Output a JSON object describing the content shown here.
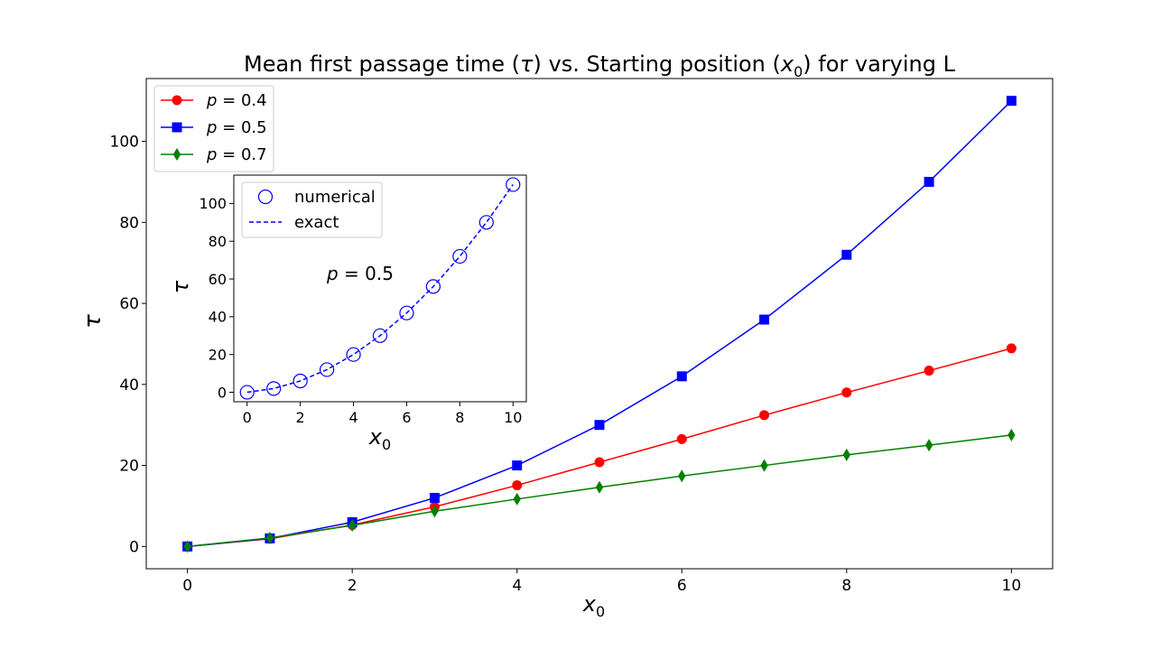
{
  "chart_data": [
    {
      "type": "line",
      "title_main": "Mean first passage time (",
      "title_tau": "τ",
      "title_mid": ") vs. Starting position (",
      "title_x": "x",
      "title_sub": "0",
      "title_end": ") for varying L",
      "xlabel": "x",
      "xlabel_sub": "0",
      "ylabel": "τ",
      "xlim": [
        -0.5,
        10.5
      ],
      "ylim": [
        -5.5,
        115.5
      ],
      "xticks": [
        0,
        2,
        4,
        6,
        8,
        10
      ],
      "yticks": [
        0,
        20,
        40,
        60,
        80,
        100
      ],
      "grid": false,
      "legend_position": "upper-left",
      "x": [
        0,
        1,
        2,
        3,
        4,
        5,
        6,
        7,
        8,
        9,
        10
      ],
      "series": [
        {
          "name_p": "p",
          "name_eq": " = 0.4",
          "color": "#ff0000",
          "marker": "circle",
          "values": [
            0,
            1.9,
            5.3,
            9.8,
            15.1,
            20.8,
            26.5,
            32.4,
            38.0,
            43.4,
            48.9
          ]
        },
        {
          "name_p": "p",
          "name_eq": " = 0.5",
          "color": "#0000ff",
          "marker": "square",
          "values": [
            0,
            2,
            6,
            12,
            20,
            30,
            42,
            56,
            72,
            90,
            110
          ]
        },
        {
          "name_p": "p",
          "name_eq": " = 0.7",
          "color": "#008000",
          "marker": "diamond",
          "values": [
            0,
            2.1,
            5.2,
            8.7,
            11.7,
            14.6,
            17.4,
            20.0,
            22.6,
            25.0,
            27.5
          ]
        }
      ]
    },
    {
      "type": "line",
      "xlabel": "x",
      "xlabel_sub": "0",
      "ylabel": "τ",
      "annotation_p": "p",
      "annotation_eq": " = 0.5",
      "xlim": [
        -0.5,
        10.5
      ],
      "ylim": [
        -5,
        115
      ],
      "xticks": [
        0,
        2,
        4,
        6,
        8,
        10
      ],
      "yticks": [
        0,
        20,
        40,
        60,
        80,
        100
      ],
      "grid": false,
      "legend_position": "upper-left",
      "x": [
        0,
        1,
        2,
        3,
        4,
        5,
        6,
        7,
        8,
        9,
        10
      ],
      "series": [
        {
          "name": "numerical",
          "color": "#0000ff",
          "marker": "open-circle",
          "values": [
            0,
            2,
            6,
            12,
            20,
            30,
            42,
            56,
            72,
            90,
            110
          ]
        },
        {
          "name": "exact",
          "color": "#0000ff",
          "style": "dashed",
          "values": [
            0,
            2,
            6,
            12,
            20,
            30,
            42,
            56,
            72,
            90,
            110
          ]
        }
      ]
    }
  ]
}
